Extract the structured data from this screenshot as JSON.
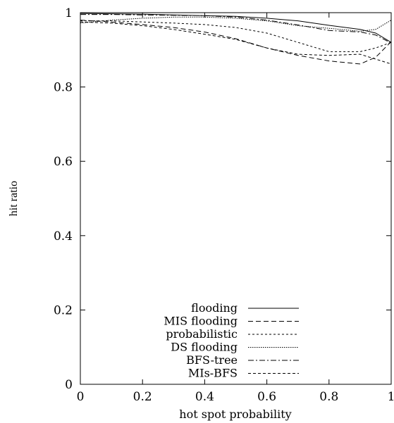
{
  "chart_data": {
    "type": "line",
    "title": "",
    "xlabel": "hot spot probability",
    "ylabel": "hit ratio",
    "xlim": [
      0,
      1
    ],
    "ylim": [
      0,
      1
    ],
    "x_ticks": [
      "0",
      "0.2",
      "0.4",
      "0.6",
      "0.8",
      "1"
    ],
    "y_ticks": [
      "0",
      "0.2",
      "0.4",
      "0.6",
      "0.8",
      "1"
    ],
    "grid": false,
    "legend_position": "bottom-center",
    "x": [
      0,
      0.1,
      0.2,
      0.3,
      0.4,
      0.5,
      0.6,
      0.7,
      0.8,
      0.9,
      0.95,
      1.0
    ],
    "series": [
      {
        "name": "flooding",
        "dash": "solid",
        "values": [
          0.998,
          0.997,
          0.996,
          0.994,
          0.992,
          0.99,
          0.985,
          0.978,
          0.966,
          0.955,
          0.945,
          0.92
        ]
      },
      {
        "name": "MIS flooding",
        "dash": "dashed",
        "values": [
          0.98,
          0.975,
          0.968,
          0.96,
          0.948,
          0.93,
          0.905,
          0.885,
          0.87,
          0.862,
          0.88,
          0.922
        ]
      },
      {
        "name": "probabilistic",
        "dash": "dotted2",
        "values": [
          0.978,
          0.978,
          0.975,
          0.972,
          0.968,
          0.96,
          0.945,
          0.92,
          0.895,
          0.895,
          0.905,
          0.92
        ]
      },
      {
        "name": "DS flooding",
        "dash": "dotted",
        "values": [
          0.972,
          0.98,
          0.985,
          0.988,
          0.988,
          0.985,
          0.978,
          0.965,
          0.958,
          0.95,
          0.955,
          0.98
        ]
      },
      {
        "name": "BFS-tree",
        "dash": "dashdot",
        "values": [
          0.995,
          0.995,
          0.994,
          0.993,
          0.992,
          0.988,
          0.98,
          0.967,
          0.952,
          0.948,
          0.94,
          0.918
        ]
      },
      {
        "name": "MIs-BFS",
        "dash": "dashed2",
        "values": [
          0.975,
          0.972,
          0.965,
          0.955,
          0.942,
          0.928,
          0.905,
          0.888,
          0.885,
          0.888,
          0.875,
          0.862
        ]
      }
    ]
  }
}
